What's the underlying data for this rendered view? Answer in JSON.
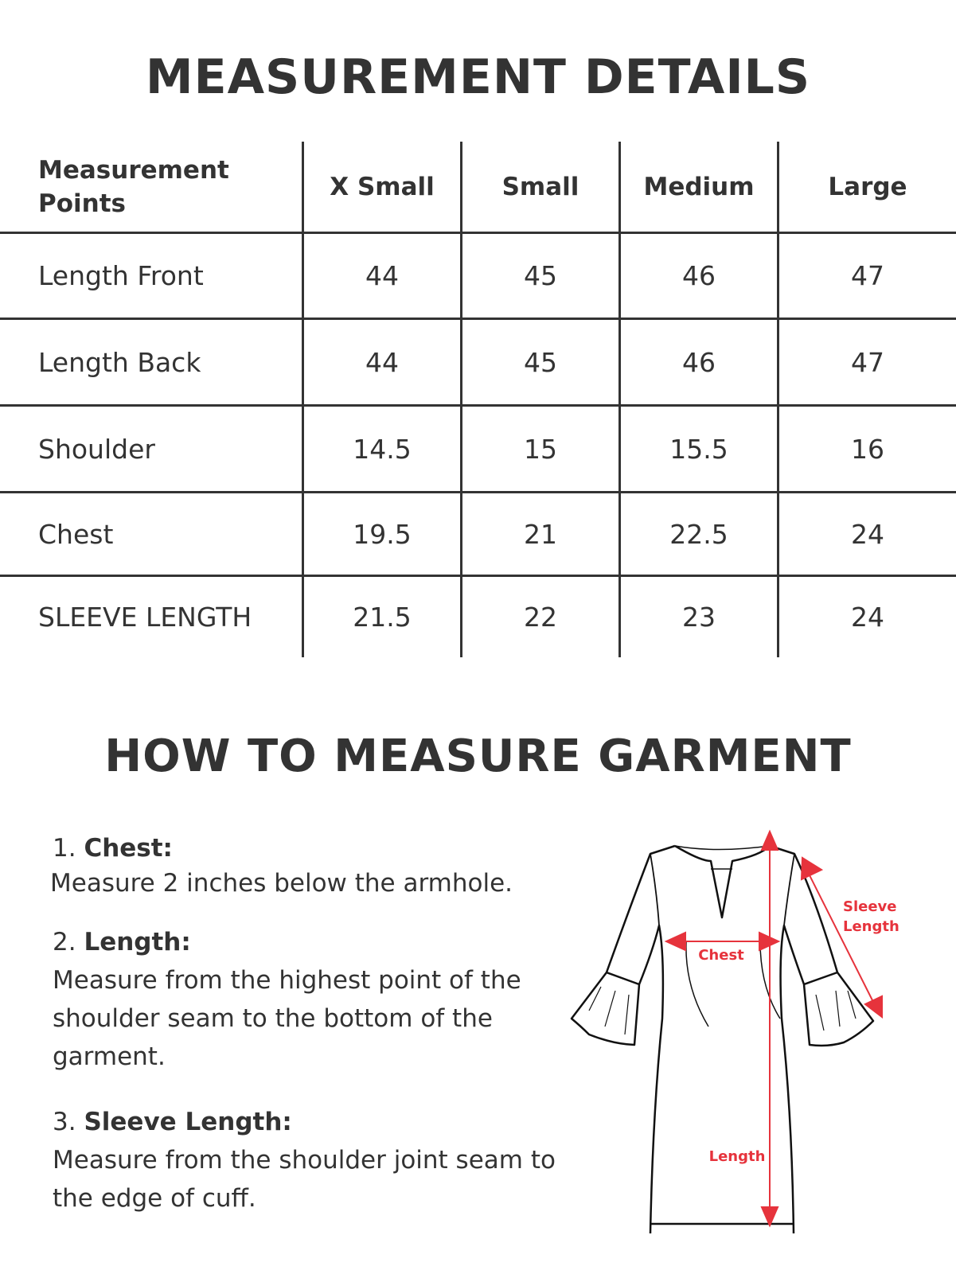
{
  "title": "MEASUREMENT DETAILS",
  "table": {
    "headers": [
      "Measurement Points",
      "X Small",
      "Small",
      "Medium",
      "Large"
    ],
    "rows": [
      {
        "label": "Length Front",
        "values": [
          "44",
          "45",
          "46",
          "47"
        ]
      },
      {
        "label": "Length Back",
        "values": [
          "44",
          "45",
          "46",
          "47"
        ]
      },
      {
        "label": "Shoulder",
        "values": [
          "14.5",
          "15",
          "15.5",
          "16"
        ]
      },
      {
        "label": "Chest",
        "values": [
          "19.5",
          "21",
          "22.5",
          "24"
        ]
      },
      {
        "label": "SLEEVE LENGTH",
        "values": [
          "21.5",
          "22",
          "23",
          "24"
        ]
      }
    ]
  },
  "guide": {
    "title": "HOW TO MEASURE GARMENT",
    "steps": [
      {
        "num": "1.",
        "name": "Chest:",
        "text": "Measure 2 inches  below the armhole."
      },
      {
        "num": "2.",
        "name": "Length:",
        "text": "Measure from the highest point of the shoulder seam to the bottom of the garment."
      },
      {
        "num": "3.",
        "name": "Sleeve Length:",
        "text": "Measure from the shoulder joint seam to the edge of cuff."
      }
    ],
    "diagram_labels": {
      "chest": "Chest",
      "length": "Length",
      "sleeve_1": "Sleeve",
      "sleeve_2": "Length"
    },
    "accent_color": "#e6333c"
  }
}
